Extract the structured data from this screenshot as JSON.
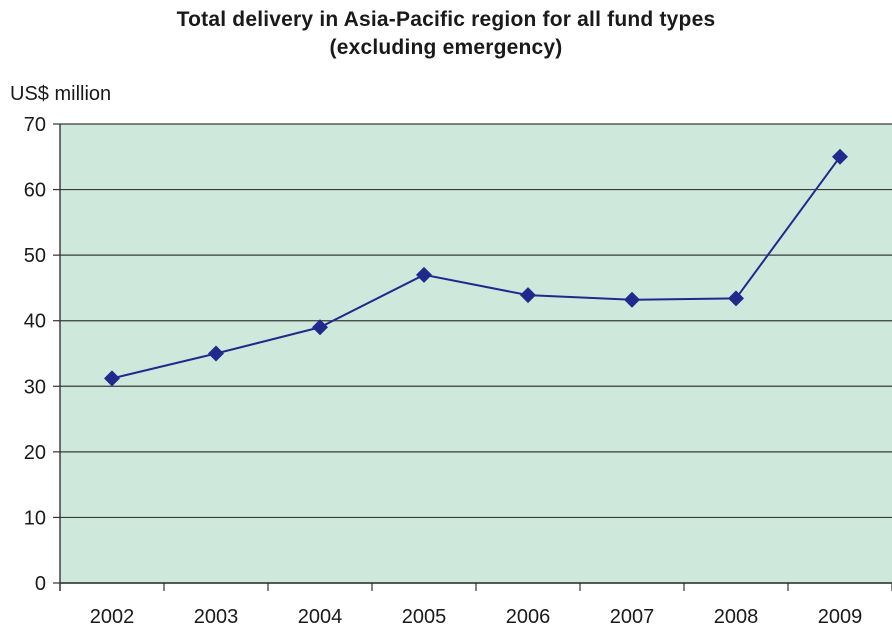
{
  "chart_data": {
    "type": "line",
    "title_lines": [
      "Total delivery in Asia-Pacific region for all fund types",
      "(excluding emergency)"
    ],
    "ylabel": "US$ million",
    "xlabel": "",
    "categories": [
      "2002",
      "2003",
      "2004",
      "2005",
      "2006",
      "2007",
      "2008",
      "2009"
    ],
    "series": [
      {
        "values": [
          31.2,
          35.0,
          39.0,
          47.0,
          43.9,
          43.2,
          43.4,
          65.0
        ],
        "color": "#1f2a8c",
        "marker": "diamond"
      }
    ],
    "ylim": [
      0,
      70
    ],
    "yticks": [
      "0",
      "10",
      "20",
      "30",
      "40",
      "50",
      "60",
      "70"
    ],
    "grid": true,
    "plot_background": "#cfe8dc",
    "gridline_color": "#3a3a3a"
  }
}
